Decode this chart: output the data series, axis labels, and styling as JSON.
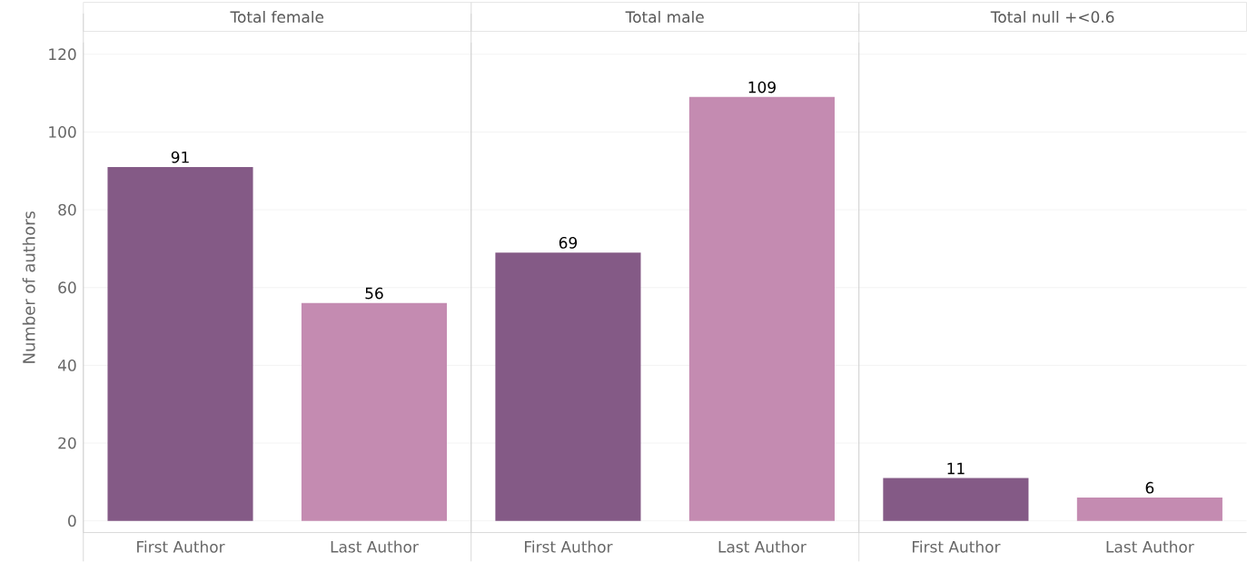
{
  "chart_data": [
    {
      "type": "bar",
      "title": "Total female",
      "ylabel": "Number of authors",
      "categories": [
        "First Author",
        "Last Author"
      ],
      "values": [
        91,
        56
      ],
      "colors": [
        "#845a86",
        "#c48bb1"
      ],
      "ylim": [
        -3,
        123
      ],
      "yticks": [
        0,
        20,
        40,
        60,
        80,
        100,
        120
      ],
      "grid": "y",
      "data_labels": true
    },
    {
      "type": "bar",
      "title": "Total male",
      "categories": [
        "First Author",
        "Last Author"
      ],
      "values": [
        69,
        109
      ],
      "colors": [
        "#845a86",
        "#c48bb1"
      ],
      "ylim": [
        -3,
        123
      ],
      "yticks": [
        0,
        20,
        40,
        60,
        80,
        100,
        120
      ],
      "grid": "y",
      "data_labels": true,
      "tick_labels": "x"
    },
    {
      "type": "bar",
      "title": "Total null +<0.6",
      "categories": [
        "First Author",
        "Last Author"
      ],
      "values": [
        11,
        6
      ],
      "colors": [
        "#845a86",
        "#c48bb1"
      ],
      "ylim": [
        -3,
        123
      ],
      "yticks": [
        0,
        20,
        40,
        60,
        80,
        100,
        120
      ],
      "grid": "y",
      "data_labels": true,
      "tick_labels": "x"
    }
  ]
}
